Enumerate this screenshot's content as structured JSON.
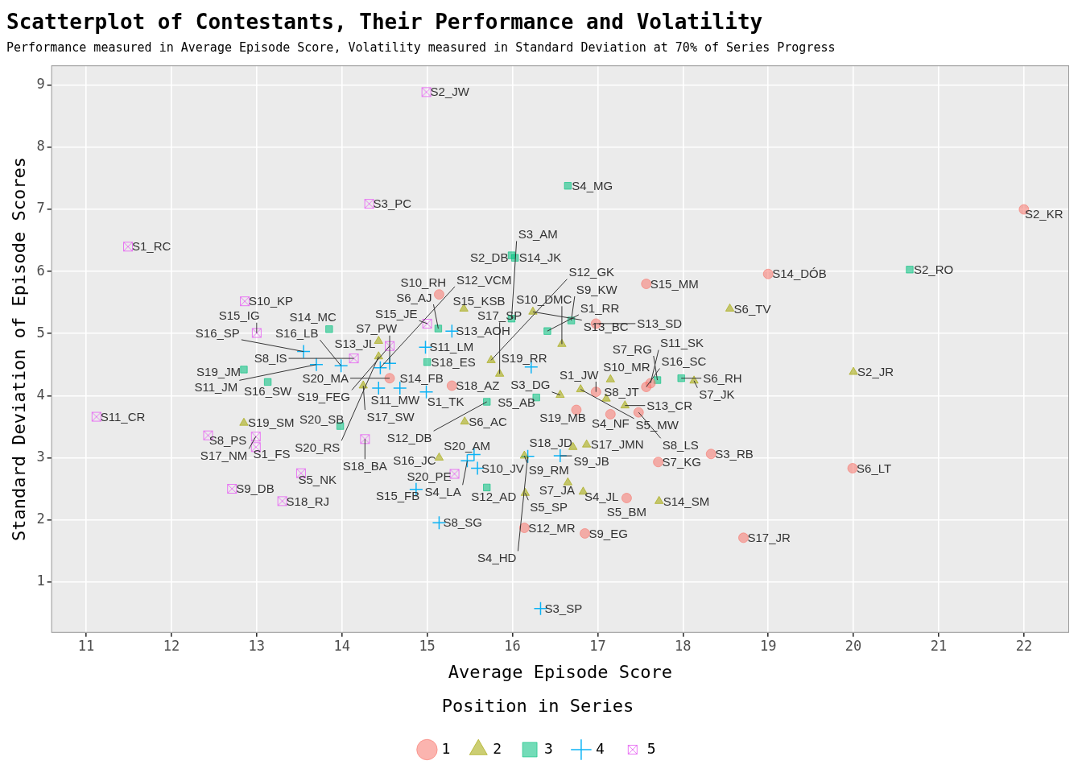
{
  "chart_data": {
    "type": "scatter",
    "title": "Scatterplot of Contestants, Their Performance and Volatility",
    "subtitle": "Performance measured in Average Episode Score, Volatility measured in Standard Deviation at 70% of Series Progress",
    "x_label": "Average Episode Score",
    "y_label": "Standard Deviation of Episode Scores",
    "xlim": [
      10.59,
      22.53
    ],
    "ylim": [
      0.18,
      9.32
    ],
    "xticks": [
      11,
      12,
      13,
      14,
      15,
      16,
      17,
      18,
      19,
      20,
      21,
      22
    ],
    "yticks": [
      1,
      2,
      3,
      4,
      5,
      6,
      7,
      8,
      9
    ],
    "grid": true,
    "legend": "bottom",
    "legend_title": "Position in Series",
    "data_labels": true,
    "series": [
      {
        "name": "1",
        "color": "#F8766D",
        "marker": "circle",
        "labels": [
          "S2_KR",
          "S10_RH",
          "S15_MM",
          "S14_DÓB",
          "S13_SD",
          "S16_SC",
          "S20_MA",
          "S18_AZ",
          "S19_MB",
          "S8_LS",
          "S4_NF",
          "S11_SK",
          "S1_JW",
          "S3_RB",
          "S7_KG",
          "S6_LT",
          "S5_BM",
          "S9_EG",
          "S12_MR",
          "S17_JR"
        ],
        "x": [
          22.0,
          15.14,
          17.57,
          19.0,
          16.98,
          17.57,
          14.56,
          15.29,
          16.75,
          17.48,
          17.15,
          17.62,
          16.98,
          18.33,
          17.71,
          19.99,
          17.34,
          16.85,
          16.14,
          18.71
        ],
        "y": [
          7.0,
          5.63,
          5.8,
          5.96,
          5.16,
          4.14,
          4.28,
          4.16,
          3.77,
          3.73,
          3.7,
          4.2,
          4.06,
          3.06,
          2.93,
          2.83,
          2.35,
          1.78,
          1.87,
          1.71
        ]
      },
      {
        "name": "2",
        "color": "#A3A500",
        "marker": "triangle",
        "labels": [
          "S15_KSB",
          "S6_TV",
          "S13_BC",
          "S10_DMC",
          "S10_MR",
          "S13_JL",
          "S12_GK",
          "S7_JK",
          "S2_JR",
          "S17_SP",
          "S20_RS",
          "S3_DG",
          "S19_SM",
          "S17_SW",
          "S5_MW",
          "S13_CR",
          "S8_JT",
          "S6_AC",
          "S16_JC",
          "S18_JD",
          "S17_JMN",
          "S9_RM",
          "S7_JA",
          "S4_JL",
          "S5_SP",
          "S14_SM"
        ],
        "x": [
          15.43,
          18.55,
          16.24,
          16.58,
          17.15,
          14.43,
          15.75,
          18.13,
          20.0,
          15.85,
          14.43,
          16.56,
          12.85,
          14.25,
          16.8,
          17.32,
          17.1,
          15.44,
          15.14,
          16.71,
          16.87,
          16.14,
          16.65,
          16.83,
          16.15,
          17.72
        ],
        "y": [
          5.4,
          5.4,
          5.35,
          4.83,
          4.26,
          4.88,
          4.57,
          4.24,
          4.38,
          4.35,
          4.63,
          4.01,
          3.56,
          4.16,
          4.1,
          3.84,
          3.95,
          3.58,
          3.0,
          3.17,
          3.21,
          3.03,
          2.6,
          2.45,
          2.43,
          2.3
        ]
      },
      {
        "name": "3",
        "color": "#00BF7D",
        "marker": "square",
        "labels": [
          "S4_MG",
          "S2_DB",
          "S14_JK",
          "S3_AM",
          "S2_RO",
          "S9_KW",
          "S1_RR",
          "S14_MC",
          "S6_AJ",
          "S7_RG",
          "S18_ES",
          "S19_JM",
          "S6_RH",
          "S16_SW",
          "S5_AB",
          "S12_DB",
          "S20_SB",
          "S12_AD"
        ],
        "x": [
          16.65,
          15.99,
          16.03,
          15.99,
          20.66,
          16.69,
          16.41,
          13.85,
          15.13,
          17.7,
          15.0,
          12.85,
          17.98,
          13.13,
          16.28,
          15.7,
          13.98,
          15.7
        ],
        "y": [
          7.38,
          6.26,
          6.22,
          5.24,
          6.03,
          5.21,
          5.04,
          5.07,
          5.08,
          4.25,
          4.54,
          4.42,
          4.28,
          4.22,
          3.97,
          3.9,
          3.51,
          2.52
        ]
      },
      {
        "name": "4",
        "color": "#00B0F6",
        "marker": "cross",
        "labels": [
          "S11_LM",
          "S16_SP",
          "S13_AOH",
          "S11_JM",
          "S16_LB",
          "S19_RR",
          "S11_MW",
          "S14_FB",
          "S1_TK",
          "S12_VCM",
          "S7_PW",
          "S20_AM",
          "S9_JB",
          "S15_FB",
          "S10_JV",
          "S4_LA",
          "S4_HD",
          "S8_SG",
          "S3_SP"
        ],
        "x": [
          14.98,
          13.55,
          15.29,
          13.7,
          13.99,
          16.22,
          14.43,
          14.68,
          14.99,
          14.45,
          14.56,
          15.55,
          16.56,
          14.87,
          15.59,
          15.47,
          16.18,
          15.14,
          16.33
        ],
        "y": [
          4.78,
          4.71,
          5.04,
          4.5,
          4.48,
          4.46,
          4.12,
          4.12,
          4.06,
          4.45,
          4.52,
          3.05,
          3.03,
          2.49,
          2.83,
          2.95,
          3.02,
          1.95,
          0.57
        ]
      },
      {
        "name": "5",
        "color": "#E76BF3",
        "marker": "square_cross",
        "labels": [
          "S2_JW",
          "S3_PC",
          "S1_RC",
          "S10_KP",
          "S15_IG",
          "S15_JE",
          "S8_IS",
          "S19_FEG",
          "S11_CR",
          "S8_PS",
          "S18_BA",
          "S17_NM",
          "S1_FS",
          "S5_NK",
          "S9_DB",
          "S18_RJ",
          "S20_PE"
        ],
        "x": [
          14.99,
          14.32,
          11.49,
          12.86,
          13.0,
          15.0,
          14.14,
          14.56,
          11.12,
          12.43,
          14.27,
          12.99,
          12.99,
          13.52,
          12.71,
          13.3,
          15.32
        ],
        "y": [
          8.89,
          7.09,
          6.4,
          5.52,
          5.01,
          5.16,
          4.6,
          4.8,
          3.66,
          3.36,
          3.3,
          3.34,
          3.17,
          2.75,
          2.5,
          2.3,
          2.74
        ]
      }
    ]
  }
}
